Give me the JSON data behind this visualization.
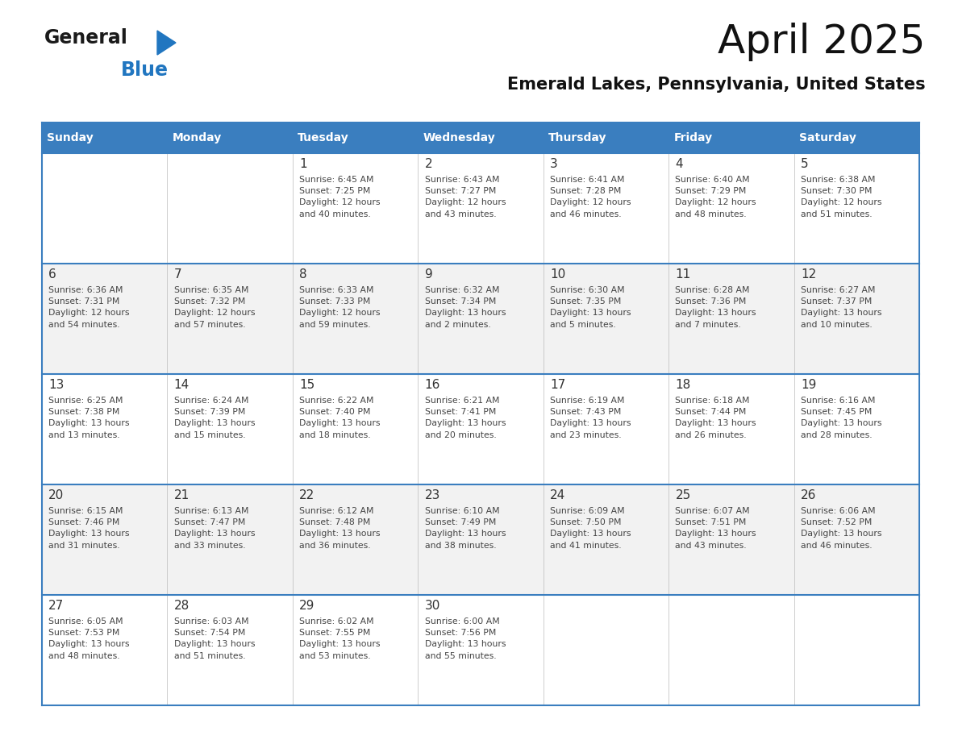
{
  "title": "April 2025",
  "subtitle": "Emerald Lakes, Pennsylvania, United States",
  "header_bg_color": "#3a7ebf",
  "header_text_color": "#ffffff",
  "row_bg_white": "#ffffff",
  "row_bg_light": "#f2f2f2",
  "day_names": [
    "Sunday",
    "Monday",
    "Tuesday",
    "Wednesday",
    "Thursday",
    "Friday",
    "Saturday"
  ],
  "row_divider_color": "#3a7ebf",
  "date_text_color": "#333333",
  "info_text_color": "#444444",
  "logo_text_color": "#1a1a1a",
  "logo_blue_color": "#2176c0",
  "calendar_data": [
    [
      {
        "day": "",
        "info": ""
      },
      {
        "day": "",
        "info": ""
      },
      {
        "day": "1",
        "info": "Sunrise: 6:45 AM\nSunset: 7:25 PM\nDaylight: 12 hours\nand 40 minutes."
      },
      {
        "day": "2",
        "info": "Sunrise: 6:43 AM\nSunset: 7:27 PM\nDaylight: 12 hours\nand 43 minutes."
      },
      {
        "day": "3",
        "info": "Sunrise: 6:41 AM\nSunset: 7:28 PM\nDaylight: 12 hours\nand 46 minutes."
      },
      {
        "day": "4",
        "info": "Sunrise: 6:40 AM\nSunset: 7:29 PM\nDaylight: 12 hours\nand 48 minutes."
      },
      {
        "day": "5",
        "info": "Sunrise: 6:38 AM\nSunset: 7:30 PM\nDaylight: 12 hours\nand 51 minutes."
      }
    ],
    [
      {
        "day": "6",
        "info": "Sunrise: 6:36 AM\nSunset: 7:31 PM\nDaylight: 12 hours\nand 54 minutes."
      },
      {
        "day": "7",
        "info": "Sunrise: 6:35 AM\nSunset: 7:32 PM\nDaylight: 12 hours\nand 57 minutes."
      },
      {
        "day": "8",
        "info": "Sunrise: 6:33 AM\nSunset: 7:33 PM\nDaylight: 12 hours\nand 59 minutes."
      },
      {
        "day": "9",
        "info": "Sunrise: 6:32 AM\nSunset: 7:34 PM\nDaylight: 13 hours\nand 2 minutes."
      },
      {
        "day": "10",
        "info": "Sunrise: 6:30 AM\nSunset: 7:35 PM\nDaylight: 13 hours\nand 5 minutes."
      },
      {
        "day": "11",
        "info": "Sunrise: 6:28 AM\nSunset: 7:36 PM\nDaylight: 13 hours\nand 7 minutes."
      },
      {
        "day": "12",
        "info": "Sunrise: 6:27 AM\nSunset: 7:37 PM\nDaylight: 13 hours\nand 10 minutes."
      }
    ],
    [
      {
        "day": "13",
        "info": "Sunrise: 6:25 AM\nSunset: 7:38 PM\nDaylight: 13 hours\nand 13 minutes."
      },
      {
        "day": "14",
        "info": "Sunrise: 6:24 AM\nSunset: 7:39 PM\nDaylight: 13 hours\nand 15 minutes."
      },
      {
        "day": "15",
        "info": "Sunrise: 6:22 AM\nSunset: 7:40 PM\nDaylight: 13 hours\nand 18 minutes."
      },
      {
        "day": "16",
        "info": "Sunrise: 6:21 AM\nSunset: 7:41 PM\nDaylight: 13 hours\nand 20 minutes."
      },
      {
        "day": "17",
        "info": "Sunrise: 6:19 AM\nSunset: 7:43 PM\nDaylight: 13 hours\nand 23 minutes."
      },
      {
        "day": "18",
        "info": "Sunrise: 6:18 AM\nSunset: 7:44 PM\nDaylight: 13 hours\nand 26 minutes."
      },
      {
        "day": "19",
        "info": "Sunrise: 6:16 AM\nSunset: 7:45 PM\nDaylight: 13 hours\nand 28 minutes."
      }
    ],
    [
      {
        "day": "20",
        "info": "Sunrise: 6:15 AM\nSunset: 7:46 PM\nDaylight: 13 hours\nand 31 minutes."
      },
      {
        "day": "21",
        "info": "Sunrise: 6:13 AM\nSunset: 7:47 PM\nDaylight: 13 hours\nand 33 minutes."
      },
      {
        "day": "22",
        "info": "Sunrise: 6:12 AM\nSunset: 7:48 PM\nDaylight: 13 hours\nand 36 minutes."
      },
      {
        "day": "23",
        "info": "Sunrise: 6:10 AM\nSunset: 7:49 PM\nDaylight: 13 hours\nand 38 minutes."
      },
      {
        "day": "24",
        "info": "Sunrise: 6:09 AM\nSunset: 7:50 PM\nDaylight: 13 hours\nand 41 minutes."
      },
      {
        "day": "25",
        "info": "Sunrise: 6:07 AM\nSunset: 7:51 PM\nDaylight: 13 hours\nand 43 minutes."
      },
      {
        "day": "26",
        "info": "Sunrise: 6:06 AM\nSunset: 7:52 PM\nDaylight: 13 hours\nand 46 minutes."
      }
    ],
    [
      {
        "day": "27",
        "info": "Sunrise: 6:05 AM\nSunset: 7:53 PM\nDaylight: 13 hours\nand 48 minutes."
      },
      {
        "day": "28",
        "info": "Sunrise: 6:03 AM\nSunset: 7:54 PM\nDaylight: 13 hours\nand 51 minutes."
      },
      {
        "day": "29",
        "info": "Sunrise: 6:02 AM\nSunset: 7:55 PM\nDaylight: 13 hours\nand 53 minutes."
      },
      {
        "day": "30",
        "info": "Sunrise: 6:00 AM\nSunset: 7:56 PM\nDaylight: 13 hours\nand 55 minutes."
      },
      {
        "day": "",
        "info": ""
      },
      {
        "day": "",
        "info": ""
      },
      {
        "day": "",
        "info": ""
      }
    ]
  ]
}
